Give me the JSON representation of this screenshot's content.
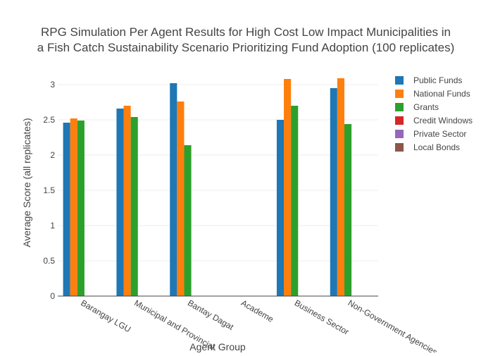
{
  "chart_data": {
    "type": "bar",
    "title_lines": [
      "RPG Simulation Per Agent Results for High Cost Low Impact Municipalities in",
      "a Fish Catch Sustainability Scenario Prioritizing Fund Adoption (100 replicates)"
    ],
    "xlabel": "Agent Group",
    "ylabel": "Average Score (all replicates)",
    "ylim": [
      0,
      3.2
    ],
    "yticks": [
      0,
      0.5,
      1,
      1.5,
      2,
      2.5,
      3
    ],
    "ytick_labels": [
      "0",
      "0.5",
      "1",
      "1.5",
      "2",
      "2.5",
      "3"
    ],
    "grid": true,
    "legend_position": "top-right",
    "categories": [
      "Barangay LGU",
      "Municipal and Provincial",
      "Bantay Dagat",
      "Academe",
      "Business Sector",
      "Non-Government Agencies"
    ],
    "series": [
      {
        "name": "Public Funds",
        "color": "#1f77b4",
        "values": [
          2.46,
          2.66,
          3.02,
          0,
          2.5,
          2.95
        ]
      },
      {
        "name": "National Funds",
        "color": "#ff7f0e",
        "values": [
          2.52,
          2.7,
          2.76,
          0,
          3.08,
          3.09
        ]
      },
      {
        "name": "Grants",
        "color": "#2ca02c",
        "values": [
          2.49,
          2.54,
          2.14,
          0,
          2.7,
          2.44
        ]
      },
      {
        "name": "Credit Windows",
        "color": "#d62728",
        "values": [
          0,
          0,
          0,
          0,
          0,
          0
        ]
      },
      {
        "name": "Private Sector",
        "color": "#9467bd",
        "values": [
          0,
          0,
          0,
          0,
          0,
          0
        ]
      },
      {
        "name": "Local Bonds",
        "color": "#8c564b",
        "values": [
          0,
          0,
          0,
          0,
          0,
          0
        ]
      }
    ]
  }
}
